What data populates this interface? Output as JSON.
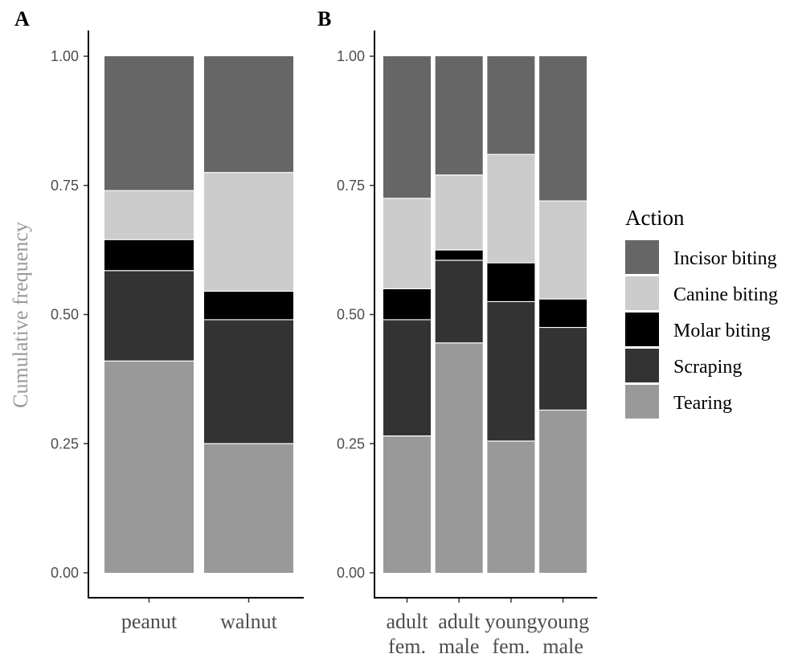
{
  "chart_data": [
    {
      "type": "bar",
      "stacked": true,
      "panel": "A",
      "ylabel": "Cumulative frequency",
      "ylim": [
        0,
        1
      ],
      "yticks": [
        "0.00",
        "0.25",
        "0.50",
        "0.75",
        "1.00"
      ],
      "categories": [
        [
          "peanut"
        ],
        [
          "walnut"
        ]
      ],
      "series": [
        {
          "name": "Tearing",
          "values": [
            0.41,
            0.25
          ]
        },
        {
          "name": "Scraping",
          "values": [
            0.175,
            0.24
          ]
        },
        {
          "name": "Molar biting",
          "values": [
            0.06,
            0.055
          ]
        },
        {
          "name": "Canine biting",
          "values": [
            0.095,
            0.23
          ]
        },
        {
          "name": "Incisor biting",
          "values": [
            0.26,
            0.225
          ]
        }
      ]
    },
    {
      "type": "bar",
      "stacked": true,
      "panel": "B",
      "ylim": [
        0,
        1
      ],
      "yticks": [
        "0.00",
        "0.25",
        "0.50",
        "0.75",
        "1.00"
      ],
      "categories": [
        [
          "adult",
          "fem."
        ],
        [
          "adult",
          "male"
        ],
        [
          "young",
          "fem."
        ],
        [
          "young",
          "male"
        ]
      ],
      "series": [
        {
          "name": "Tearing",
          "values": [
            0.265,
            0.445,
            0.255,
            0.315
          ]
        },
        {
          "name": "Scraping",
          "values": [
            0.225,
            0.16,
            0.27,
            0.16
          ]
        },
        {
          "name": "Molar biting",
          "values": [
            0.06,
            0.02,
            0.075,
            0.055
          ]
        },
        {
          "name": "Canine biting",
          "values": [
            0.175,
            0.145,
            0.21,
            0.19
          ]
        },
        {
          "name": "Incisor biting",
          "values": [
            0.275,
            0.23,
            0.19,
            0.28
          ]
        }
      ]
    }
  ],
  "legend": {
    "title": "Action",
    "placement": "right",
    "items": [
      {
        "label": "Incisor biting",
        "color": "#666666"
      },
      {
        "label": "Canine biting",
        "color": "#cccccc"
      },
      {
        "label": "Molar biting",
        "color": "#000000"
      },
      {
        "label": "Scraping",
        "color": "#333333"
      },
      {
        "label": "Tearing",
        "color": "#999999"
      }
    ]
  },
  "colors": {
    "Incisor biting": "#666666",
    "Canine biting": "#cccccc",
    "Molar biting": "#000000",
    "Scraping": "#333333",
    "Tearing": "#999999"
  }
}
